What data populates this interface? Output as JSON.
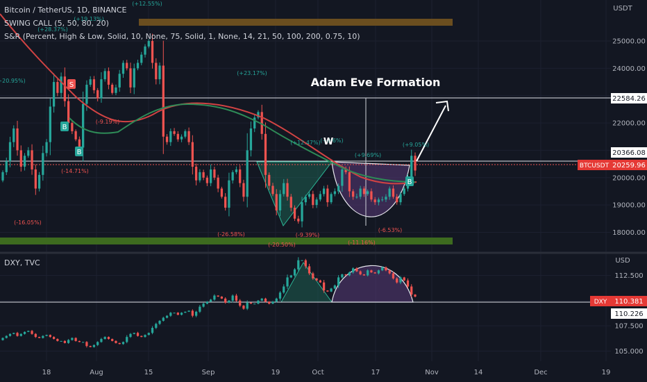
{
  "legend": {
    "symbol_line": "Bitcoin / TetherUS, 1D, BINANCE",
    "swing_line": "SWING CALL (5, 50, 80, 20)",
    "sr_line": "S&R (Percent, High & Low, Solid, 10, None, 75, Solid, 1, None, 14, 21, 50, 100, 200, 0.75, 10)",
    "dxy_line": "DXY, TVC"
  },
  "annotation": {
    "title": "Adam Eve Formation",
    "w_mark": "W"
  },
  "colors": {
    "background": "#131722",
    "up": "#26a69a",
    "down": "#ef5350",
    "ma": "#d14343",
    "ma2": "#2e8b57",
    "sr_top": "#6b4e1f",
    "sr_bottom": "#3d6b1f",
    "adam": "#1f6f5c",
    "eve": "#5a3a78",
    "price_tag": "#e53935"
  },
  "chart_data": [
    {
      "type": "candlestick",
      "title": "Bitcoin / TetherUS, 1D, BINANCE",
      "y_unit": "USDT",
      "y_ticks": [
        18000,
        19000,
        20000,
        21000,
        22000,
        23000,
        24000,
        25000
      ],
      "y_tick_labels": [
        "18000.00",
        "19000.00",
        "20000.00",
        "21000.00",
        "22000.00",
        "23000.00",
        "24000.00",
        "25000.00"
      ],
      "ylim": [
        17300,
        26500
      ],
      "x_labels": [
        "18",
        "Aug",
        "15",
        "Sep",
        "19",
        "Oct",
        "17",
        "Nov",
        "14",
        "Dec",
        "19"
      ],
      "series": [
        {
          "name": "BTCUSDT",
          "closes": [
            20200,
            20600,
            21300,
            21800,
            21000,
            20400,
            20800,
            21000,
            20300,
            19600,
            20100,
            20900,
            21300,
            22600,
            23500,
            23100,
            23700,
            22800,
            22000,
            21700,
            21400,
            21100,
            22700,
            23400,
            23600,
            23200,
            22900,
            23600,
            23900,
            23400,
            23100,
            23300,
            23800,
            24200,
            24000,
            23300,
            24000,
            24200,
            24500,
            24800,
            25000,
            24200,
            23600,
            24100,
            21500,
            21300,
            21700,
            21600,
            21400,
            21500,
            21700,
            21300,
            20400,
            19900,
            20200,
            20000,
            19800,
            20300,
            20000,
            19600,
            19300,
            18900,
            19900,
            20200,
            20300,
            19800,
            19300,
            21000,
            21800,
            22200,
            22400,
            21600,
            20100,
            19700,
            19400,
            18800,
            19400,
            19800,
            19300,
            18900,
            18500,
            18400,
            19100,
            19300,
            19400,
            19000,
            19200,
            19400,
            19600,
            19100,
            19400,
            19500,
            19700,
            20300,
            20200,
            19500,
            19300,
            19300,
            19600,
            19400,
            19500,
            19200,
            19100,
            19200,
            19200,
            19300,
            19600,
            19300,
            19100,
            19400,
            19600,
            20000,
            20800,
            20260
          ]
        },
        {
          "name": "S&R levels",
          "values": [
            22584.26,
            20366.08
          ]
        }
      ],
      "price_labels": [
        "22584.26",
        "20366.08",
        "20259.96"
      ],
      "price_tag": "BTCUSDT",
      "swing_labels": [
        "(+12.55%)",
        "(+19.13%)",
        "(+28.37%)",
        "(+20.95%)",
        "(-9.19%)",
        "(-14.71%)",
        "(-16.05%)",
        "(+23.17%)",
        "(+12.47%)",
        "(+9.6%)",
        "(+9.69%)",
        "(+9.05%)",
        "(-26.58%)",
        "(-20.50%)",
        "(-9.39%)",
        "(-11.16%)",
        "(-6.53%)"
      ],
      "signal_labels": [
        "S",
        "B",
        "B",
        "B"
      ]
    },
    {
      "type": "candlestick",
      "title": "DXY, TVC",
      "y_unit": "USD",
      "y_ticks": [
        105.0,
        107.5,
        110.0,
        112.5
      ],
      "y_tick_labels": [
        "105.000",
        "107.500",
        "",
        "112.500"
      ],
      "ylim": [
        104.0,
        114.6
      ],
      "series": [
        {
          "name": "DXY",
          "closes": [
            106.3,
            106.5,
            106.7,
            106.8,
            106.5,
            106.7,
            106.9,
            107.0,
            106.7,
            106.4,
            106.3,
            106.5,
            106.6,
            106.4,
            106.2,
            106.0,
            106.0,
            105.8,
            106.1,
            106.3,
            106.0,
            105.9,
            105.9,
            105.5,
            105.4,
            105.6,
            105.9,
            106.2,
            106.4,
            106.2,
            106.0,
            105.8,
            105.7,
            105.9,
            106.4,
            106.7,
            106.8,
            106.5,
            106.4,
            106.6,
            106.8,
            107.3,
            107.7,
            108.0,
            108.3,
            108.5,
            108.8,
            108.8,
            108.6,
            108.8,
            108.9,
            109.0,
            108.5,
            108.9,
            109.4,
            109.7,
            109.9,
            110.1,
            110.5,
            110.4,
            110.2,
            109.8,
            110.0,
            110.5,
            110.0,
            109.5,
            109.2,
            109.8,
            109.7,
            109.7,
            110.0,
            110.2,
            109.9,
            109.7,
            109.9,
            110.2,
            110.8,
            111.4,
            112.3,
            112.5,
            113.1,
            114.0,
            114.0,
            113.4,
            112.7,
            112.2,
            112.0,
            111.8,
            111.0,
            110.9,
            111.2,
            111.5,
            112.3,
            112.6,
            112.5,
            112.8,
            113.2,
            112.9,
            112.6,
            112.5,
            113.0,
            112.8,
            112.7,
            113.0,
            113.3,
            113.0,
            112.7,
            112.2,
            111.8,
            112.3,
            112.0,
            111.4,
            110.6,
            110.4
          ]
        },
        {
          "name": "S&R levels",
          "values": [
            110.381,
            110.226
          ]
        }
      ],
      "price_labels": [
        "110.381",
        "110.226"
      ],
      "price_tag": "DXY"
    }
  ]
}
